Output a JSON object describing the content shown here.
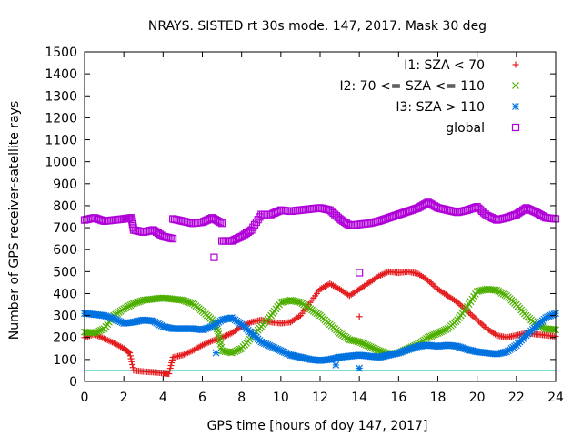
{
  "chart_data": {
    "type": "scatter",
    "title": "NRAYS. SISTED rt 30s mode. 147, 2017. Mask 30 deg",
    "xlabel": "GPS time [hours of doy 147, 2017]",
    "ylabel": "Number of GPS receiver-satellite rays",
    "xlim": [
      0,
      24
    ],
    "ylim": [
      0,
      1500
    ],
    "xticks": [
      0,
      2,
      4,
      6,
      8,
      10,
      12,
      14,
      16,
      18,
      20,
      22,
      24
    ],
    "yticks": [
      0,
      100,
      200,
      300,
      400,
      500,
      600,
      700,
      800,
      900,
      1000,
      1100,
      1200,
      1300,
      1400,
      1500
    ],
    "threshold_line": {
      "y": 50,
      "color": "#2fc3b8"
    },
    "legend_position": "top-right",
    "series": [
      {
        "name": "I1: SZA < 70",
        "color": "#e41a1c",
        "marker": "plus",
        "points": [
          [
            0,
            200
          ],
          [
            0.5,
            215
          ],
          [
            1,
            195
          ],
          [
            1.5,
            175
          ],
          [
            2,
            150
          ],
          [
            2.3,
            130
          ],
          [
            2.5,
            50
          ],
          [
            3,
            45
          ],
          [
            3.5,
            42
          ],
          [
            4,
            38
          ],
          [
            4.3,
            35
          ],
          [
            4.5,
            110
          ],
          [
            5,
            120
          ],
          [
            5.5,
            140
          ],
          [
            6,
            165
          ],
          [
            6.5,
            185
          ],
          [
            7,
            200
          ],
          [
            7.5,
            220
          ],
          [
            8,
            250
          ],
          [
            8.5,
            270
          ],
          [
            9,
            280
          ],
          [
            9.5,
            270
          ],
          [
            10,
            265
          ],
          [
            10.5,
            270
          ],
          [
            11,
            300
          ],
          [
            11.5,
            360
          ],
          [
            12,
            420
          ],
          [
            12.5,
            445
          ],
          [
            13,
            420
          ],
          [
            13.5,
            390
          ],
          [
            14,
            420
          ],
          [
            14.5,
            450
          ],
          [
            15,
            480
          ],
          [
            15.5,
            500
          ],
          [
            16,
            495
          ],
          [
            16.5,
            500
          ],
          [
            17,
            490
          ],
          [
            17.5,
            460
          ],
          [
            18,
            420
          ],
          [
            18.5,
            390
          ],
          [
            19,
            360
          ],
          [
            19.5,
            320
          ],
          [
            20,
            280
          ],
          [
            20.5,
            240
          ],
          [
            21,
            210
          ],
          [
            21.5,
            200
          ],
          [
            22,
            210
          ],
          [
            22.5,
            220
          ],
          [
            23,
            215
          ],
          [
            23.5,
            210
          ],
          [
            24,
            205
          ],
          [
            14,
            295
          ]
        ]
      },
      {
        "name": "I2: 70 <= SZA <= 110",
        "color": "#4daf00",
        "marker": "cross",
        "points": [
          [
            0,
            225
          ],
          [
            0.5,
            220
          ],
          [
            1,
            240
          ],
          [
            1.5,
            300
          ],
          [
            2,
            330
          ],
          [
            2.5,
            355
          ],
          [
            3,
            370
          ],
          [
            3.5,
            375
          ],
          [
            4,
            380
          ],
          [
            4.5,
            375
          ],
          [
            5,
            370
          ],
          [
            5.5,
            355
          ],
          [
            6,
            320
          ],
          [
            6.5,
            280
          ],
          [
            6.8,
            230
          ],
          [
            7,
            140
          ],
          [
            7.5,
            130
          ],
          [
            8,
            150
          ],
          [
            8.5,
            200
          ],
          [
            9,
            250
          ],
          [
            9.5,
            300
          ],
          [
            10,
            360
          ],
          [
            10.5,
            370
          ],
          [
            11,
            360
          ],
          [
            11.5,
            330
          ],
          [
            12,
            300
          ],
          [
            12.5,
            260
          ],
          [
            13,
            220
          ],
          [
            13.5,
            190
          ],
          [
            14,
            180
          ],
          [
            14.5,
            160
          ],
          [
            15,
            140
          ],
          [
            15.5,
            125
          ],
          [
            16,
            130
          ],
          [
            16.5,
            150
          ],
          [
            17,
            170
          ],
          [
            17.5,
            200
          ],
          [
            18,
            220
          ],
          [
            18.5,
            240
          ],
          [
            19,
            280
          ],
          [
            19.5,
            340
          ],
          [
            20,
            410
          ],
          [
            20.5,
            420
          ],
          [
            21,
            415
          ],
          [
            21.5,
            390
          ],
          [
            22,
            350
          ],
          [
            22.5,
            300
          ],
          [
            23,
            260
          ],
          [
            23.5,
            240
          ],
          [
            24,
            235
          ]
        ]
      },
      {
        "name": "I3: SZA > 110",
        "color": "#0072e0",
        "marker": "star",
        "points": [
          [
            0,
            310
          ],
          [
            0.5,
            305
          ],
          [
            1,
            300
          ],
          [
            1.5,
            285
          ],
          [
            2,
            265
          ],
          [
            2.5,
            270
          ],
          [
            3,
            280
          ],
          [
            3.5,
            275
          ],
          [
            4,
            250
          ],
          [
            4.5,
            240
          ],
          [
            5,
            240
          ],
          [
            5.5,
            240
          ],
          [
            6,
            235
          ],
          [
            6.5,
            250
          ],
          [
            7,
            280
          ],
          [
            7.5,
            290
          ],
          [
            8,
            260
          ],
          [
            8.5,
            220
          ],
          [
            9,
            180
          ],
          [
            9.5,
            160
          ],
          [
            10,
            140
          ],
          [
            10.5,
            120
          ],
          [
            11,
            110
          ],
          [
            11.5,
            100
          ],
          [
            12,
            95
          ],
          [
            12.5,
            100
          ],
          [
            13,
            110
          ],
          [
            13.5,
            115
          ],
          [
            14,
            120
          ],
          [
            14.5,
            115
          ],
          [
            15,
            110
          ],
          [
            15.5,
            120
          ],
          [
            16,
            130
          ],
          [
            16.5,
            145
          ],
          [
            17,
            160
          ],
          [
            17.5,
            165
          ],
          [
            18,
            160
          ],
          [
            18.5,
            165
          ],
          [
            19,
            160
          ],
          [
            19.5,
            145
          ],
          [
            20,
            135
          ],
          [
            20.5,
            130
          ],
          [
            21,
            125
          ],
          [
            21.5,
            135
          ],
          [
            22,
            165
          ],
          [
            22.5,
            210
          ],
          [
            23,
            250
          ],
          [
            23.5,
            290
          ],
          [
            24,
            310
          ],
          [
            6.7,
            130
          ],
          [
            12.8,
            75
          ],
          [
            14,
            60
          ]
        ]
      },
      {
        "name": "global",
        "color": "#b000d8",
        "marker": "square",
        "points": [
          [
            0,
            735
          ],
          [
            0.5,
            745
          ],
          [
            1,
            730
          ],
          [
            1.5,
            735
          ],
          [
            2,
            740
          ],
          [
            2.4,
            745
          ],
          [
            2.5,
            690
          ],
          [
            3,
            680
          ],
          [
            3.5,
            690
          ],
          [
            4,
            660
          ],
          [
            4.5,
            650
          ],
          [
            4.5,
            740
          ],
          [
            5,
            730
          ],
          [
            5.5,
            720
          ],
          [
            6,
            725
          ],
          [
            6.5,
            745
          ],
          [
            7,
            720
          ],
          [
            7,
            640
          ],
          [
            7.5,
            640
          ],
          [
            8,
            660
          ],
          [
            8.5,
            690
          ],
          [
            9,
            760
          ],
          [
            9.5,
            760
          ],
          [
            10,
            780
          ],
          [
            10.5,
            775
          ],
          [
            11,
            780
          ],
          [
            11.5,
            785
          ],
          [
            12,
            790
          ],
          [
            12.5,
            780
          ],
          [
            13,
            740
          ],
          [
            13.5,
            710
          ],
          [
            14,
            715
          ],
          [
            14.5,
            720
          ],
          [
            15,
            730
          ],
          [
            15.5,
            745
          ],
          [
            16,
            760
          ],
          [
            16.5,
            775
          ],
          [
            17,
            790
          ],
          [
            17.5,
            815
          ],
          [
            18,
            790
          ],
          [
            18.5,
            780
          ],
          [
            19,
            770
          ],
          [
            19.5,
            780
          ],
          [
            20,
            795
          ],
          [
            20.5,
            755
          ],
          [
            21,
            735
          ],
          [
            21.5,
            745
          ],
          [
            22,
            760
          ],
          [
            22.5,
            790
          ],
          [
            23,
            770
          ],
          [
            23.5,
            745
          ],
          [
            24,
            740
          ],
          [
            6.6,
            565
          ],
          [
            14,
            495
          ]
        ]
      }
    ]
  }
}
